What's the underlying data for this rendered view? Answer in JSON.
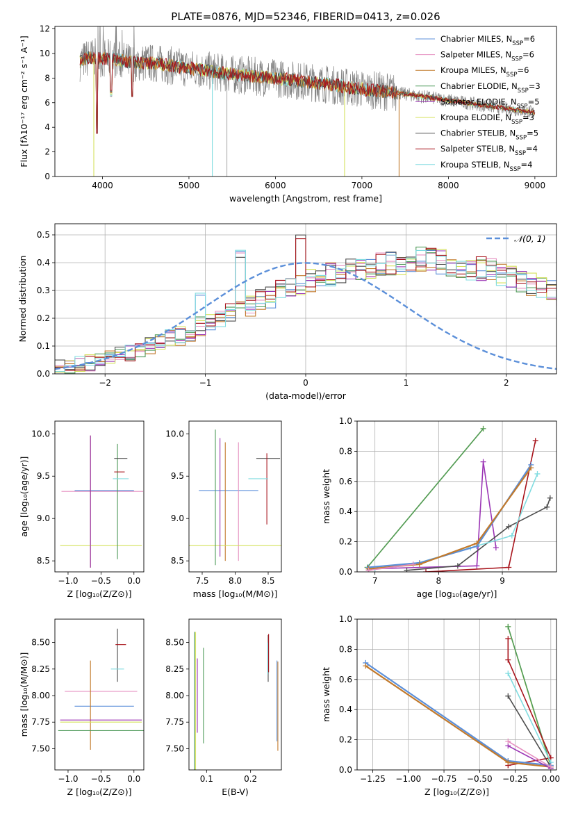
{
  "figure": {
    "title": "PLATE=0876, MJD=52346, FIBERID=0413, z=0.026"
  },
  "series_meta": [
    {
      "name": "Chabrier MILES",
      "nssp": "6",
      "color": "#5b8fd9"
    },
    {
      "name": "Salpeter MILES",
      "nssp": "6",
      "color": "#e58fc0"
    },
    {
      "name": "Kroupa MILES",
      "nssp": "6",
      "color": "#c27a2c"
    },
    {
      "name": "Chabrier ELODIE",
      "nssp": "3",
      "color": "#4f9a5a"
    },
    {
      "name": "Salpeter ELODIE",
      "nssp": "5",
      "color": "#9b35b5"
    },
    {
      "name": "Kroupa ELODIE",
      "nssp": "3",
      "color": "#d4e05a"
    },
    {
      "name": "Chabrier STELIB",
      "nssp": "5",
      "color": "#4d4d4d"
    },
    {
      "name": "Salpeter STELIB",
      "nssp": "4",
      "color": "#a8141c"
    },
    {
      "name": "Kroupa STELIB",
      "nssp": "4",
      "color": "#80dce0"
    }
  ],
  "chart_data": [
    {
      "id": "spectrum",
      "type": "line",
      "title": "PLATE=0876, MJD=52346, FIBERID=0413, z=0.026",
      "xlabel": "wavelength [Angstrom, rest frame]",
      "ylabel": "Flux [fλ10⁻¹⁷ erg cm⁻² s⁻¹ A⁻¹]",
      "xlim": [
        3450,
        9250
      ],
      "ylim": [
        0,
        12.2
      ],
      "xticks": [
        "4000",
        "5000",
        "6000",
        "7000",
        "8000",
        "9000"
      ],
      "yticks": [
        "0",
        "2",
        "4",
        "6",
        "8",
        "10",
        "12"
      ],
      "grid": false,
      "legend": "top-right",
      "continuum": {
        "x": [
          3740,
          3850,
          3950,
          4100,
          4300,
          4600,
          5000,
          5500,
          6000,
          6500,
          7000,
          7300,
          7600,
          7900,
          8200,
          8600,
          9000
        ],
        "y": [
          9.3,
          9.7,
          9.6,
          9.6,
          9.3,
          9.2,
          8.8,
          8.3,
          8.0,
          7.6,
          7.1,
          6.9,
          6.6,
          6.3,
          6.0,
          5.6,
          5.2
        ]
      },
      "dips": [
        {
          "series": "Kroupa ELODIE",
          "x": 3900,
          "y": 0
        },
        {
          "series": "Kroupa STELIB",
          "x": 5270,
          "y": 0
        },
        {
          "series": "Kroupa ELODIE",
          "x": 6800,
          "y": 0
        },
        {
          "series": "Kroupa MILES",
          "x": 7430,
          "y": 0
        }
      ]
    },
    {
      "id": "residuals",
      "type": "histogram",
      "xlabel": "(data-model)/error",
      "ylabel": "Normed distribution",
      "xlim": [
        -2.5,
        2.5
      ],
      "ylim": [
        0,
        0.54
      ],
      "xticks": [
        "−2",
        "−1",
        "0",
        "1",
        "2"
      ],
      "yticks": [
        "0.0",
        "0.1",
        "0.2",
        "0.3",
        "0.4",
        "0.5"
      ],
      "grid": true,
      "legend": "top-right",
      "reference_label": "𝒩(0, 1)",
      "bin_width": 0.1,
      "bin_start": -2.5,
      "base_values": [
        0.022,
        0.028,
        0.035,
        0.042,
        0.05,
        0.058,
        0.066,
        0.075,
        0.086,
        0.098,
        0.11,
        0.124,
        0.138,
        0.152,
        0.168,
        0.184,
        0.2,
        0.216,
        0.232,
        0.248,
        0.263,
        0.279,
        0.294,
        0.309,
        0.322,
        0.335,
        0.347,
        0.358,
        0.368,
        0.376,
        0.383,
        0.389,
        0.393,
        0.397,
        0.4,
        0.402,
        0.41,
        0.41,
        0.4,
        0.395,
        0.39,
        0.384,
        0.377,
        0.368,
        0.358,
        0.347,
        0.335,
        0.322,
        0.309,
        0.294,
        0.279,
        0.263,
        0.248,
        0.232,
        0.216,
        0.2,
        0.184,
        0.168,
        0.152,
        0.138,
        0.124,
        0.11,
        0.098,
        0.086,
        0.075,
        0.066,
        0.058,
        0.05,
        0.042,
        0.035,
        0.028,
        0.022,
        0.018,
        0.014,
        0.012,
        0.01
      ],
      "peaks": [
        {
          "x": -1.05,
          "y": 0.3
        },
        {
          "x": -0.6,
          "y": 0.445
        },
        {
          "x": -0.05,
          "y": 0.51
        },
        {
          "x": 0.1,
          "y": 0.43
        },
        {
          "x": 0.45,
          "y": 0.4
        }
      ]
    },
    {
      "id": "age_vs_Z",
      "type": "errorbar",
      "xlabel": "Z [log₁₀(Z/Z⊙)]",
      "ylabel": "age  [log₁₀(age/yr)]",
      "xlim": [
        -1.2,
        0.15
      ],
      "ylim": [
        8.37,
        10.15
      ],
      "xticks": [
        "−1.0",
        "−0.5",
        "0.0"
      ],
      "yticks": [
        "8.5",
        "9.0",
        "9.5",
        "10.0"
      ],
      "grid": false,
      "points": [
        {
          "series": "Chabrier MILES",
          "x": -0.45,
          "xerr": 0.45,
          "y": 9.33,
          "yerr": 0.0
        },
        {
          "series": "Salpeter MILES",
          "x": -0.48,
          "xerr": 0.62,
          "y": 9.32,
          "yerr": 0.0
        },
        {
          "series": "Kroupa MILES",
          "x": -0.66,
          "xerr": 0.0,
          "y": 9.2,
          "yerr": 0.78
        },
        {
          "series": "Kroupa ELODIE",
          "x": -0.5,
          "xerr": 0.62,
          "y": 8.68,
          "yerr": 0.0
        },
        {
          "series": "Chabrier ELODIE",
          "x": -0.25,
          "xerr": 0.0,
          "y": 9.2,
          "yerr": 0.68
        },
        {
          "series": "Salpeter ELODIE",
          "x": -0.66,
          "xerr": 0.0,
          "y": 9.2,
          "yerr": 0.78
        },
        {
          "series": "Chabrier STELIB",
          "x": -0.2,
          "xerr": 0.1,
          "y": 9.71,
          "yerr": 0.0
        },
        {
          "series": "Salpeter STELIB",
          "x": -0.22,
          "xerr": 0.08,
          "y": 9.55,
          "yerr": 0.0
        },
        {
          "series": "Kroupa STELIB",
          "x": -0.2,
          "xerr": 0.12,
          "y": 9.47,
          "yerr": 0.0
        }
      ]
    },
    {
      "id": "age_vs_mass",
      "type": "errorbar",
      "xlabel": "mass [log₁₀(M/M⊙)]",
      "ylabel": "",
      "xlim": [
        7.3,
        8.7
      ],
      "ylim": [
        8.37,
        10.15
      ],
      "xticks": [
        "7.5",
        "8.0",
        "8.5"
      ],
      "yticks": [
        "8.5",
        "9.0",
        "9.5",
        "10.0"
      ],
      "grid": false,
      "points": [
        {
          "series": "Chabrier MILES",
          "x": 7.9,
          "xerr": 0.45,
          "y": 9.33,
          "yerr": 0.0
        },
        {
          "series": "Salpeter MILES",
          "x": 8.05,
          "xerr": 0.0,
          "y": 9.2,
          "yerr": 0.7
        },
        {
          "series": "Kroupa MILES",
          "x": 7.85,
          "xerr": 0.0,
          "y": 9.2,
          "yerr": 0.7
        },
        {
          "series": "Kroupa ELODIE",
          "x": 8.0,
          "xerr": 0.7,
          "y": 8.68,
          "yerr": 0.0
        },
        {
          "series": "Chabrier ELODIE",
          "x": 7.7,
          "xerr": 0.0,
          "y": 9.25,
          "yerr": 0.8
        },
        {
          "series": "Salpeter ELODIE",
          "x": 7.77,
          "xerr": 0.0,
          "y": 9.25,
          "yerr": 0.7
        },
        {
          "series": "Chabrier STELIB",
          "x": 8.5,
          "xerr": 0.18,
          "y": 9.71,
          "yerr": 0.0
        },
        {
          "series": "Salpeter STELIB",
          "x": 8.48,
          "xerr": 0.0,
          "y": 9.35,
          "yerr": 0.42
        },
        {
          "series": "Kroupa STELIB",
          "x": 8.35,
          "xerr": 0.15,
          "y": 9.47,
          "yerr": 0.0
        }
      ]
    },
    {
      "id": "weight_vs_age",
      "type": "line",
      "xlabel": "age  [log₁₀(age/yr)]",
      "ylabel": "mass weight",
      "xlim": [
        6.72,
        9.85
      ],
      "ylim": [
        0,
        1.0
      ],
      "xticks": [
        "7",
        "8",
        "9"
      ],
      "yticks": [
        "0.0",
        "0.2",
        "0.4",
        "0.6",
        "0.8",
        "1.0"
      ],
      "grid": true,
      "series": [
        {
          "name": "Kroupa ELODIE",
          "x": [
            6.88,
            8.7
          ],
          "y": [
            0.03,
            0.95
          ]
        },
        {
          "name": "Chabrier ELODIE",
          "x": [
            6.88,
            8.7
          ],
          "y": [
            0.03,
            0.95
          ]
        },
        {
          "name": "Salpeter ELODIE",
          "x": [
            6.9,
            8.6,
            8.7,
            8.9
          ],
          "y": [
            0.02,
            0.04,
            0.73,
            0.16
          ]
        },
        {
          "name": "Chabrier STELIB",
          "x": [
            7.5,
            8.3,
            9.1,
            9.7,
            9.75
          ],
          "y": [
            0.01,
            0.04,
            0.3,
            0.43,
            0.49
          ]
        },
        {
          "name": "Salpeter STELIB",
          "x": [
            7.8,
            9.1,
            9.52
          ],
          "y": [
            0.0,
            0.03,
            0.87
          ]
        },
        {
          "name": "Kroupa STELIB",
          "x": [
            7.0,
            7.6,
            8.5,
            9.15,
            9.55
          ],
          "y": [
            0.02,
            0.05,
            0.16,
            0.24,
            0.65
          ]
        },
        {
          "name": "Chabrier MILES",
          "x": [
            6.9,
            7.7,
            8.6,
            9.45
          ],
          "y": [
            0.03,
            0.06,
            0.17,
            0.71
          ]
        },
        {
          "name": "Kroupa MILES",
          "x": [
            6.9,
            7.7,
            8.6,
            9.45
          ],
          "y": [
            0.02,
            0.05,
            0.19,
            0.69
          ]
        },
        {
          "name": "Salpeter MILES",
          "x": [
            6.9,
            7.6
          ],
          "y": [
            0.01,
            0.05
          ]
        }
      ]
    },
    {
      "id": "mass_vs_Z",
      "type": "errorbar",
      "xlabel": "Z [log₁₀(Z/Z⊙)]",
      "ylabel": "mass [log₁₀(M/M⊙)]",
      "xlim": [
        -1.2,
        0.15
      ],
      "ylim": [
        7.3,
        8.72
      ],
      "xticks": [
        "−1.0",
        "−0.5",
        "0.0"
      ],
      "yticks": [
        "7.50",
        "7.75",
        "8.00",
        "8.25",
        "8.50"
      ],
      "grid": false,
      "points": [
        {
          "series": "Salpeter MILES",
          "x": -0.5,
          "xerr": 0.55,
          "y": 8.04,
          "yerr": 0.0
        },
        {
          "series": "Chabrier MILES",
          "x": -0.45,
          "xerr": 0.45,
          "y": 7.9,
          "yerr": 0.0
        },
        {
          "series": "Kroupa MILES",
          "x": -0.66,
          "xerr": 0.0,
          "y": 7.91,
          "yerr": 0.42
        },
        {
          "series": "Salpeter ELODIE",
          "x": -0.5,
          "xerr": 0.62,
          "y": 7.77,
          "yerr": 0.0
        },
        {
          "series": "Kroupa ELODIE",
          "x": -0.5,
          "xerr": 0.62,
          "y": 7.75,
          "yerr": 0.0
        },
        {
          "series": "Chabrier ELODIE",
          "x": -0.45,
          "xerr": 0.7,
          "y": 7.67,
          "yerr": 0.0
        },
        {
          "series": "Chabrier STELIB",
          "x": -0.25,
          "xerr": 0.0,
          "y": 8.38,
          "yerr": 0.25
        },
        {
          "series": "Salpeter STELIB",
          "x": -0.2,
          "xerr": 0.08,
          "y": 8.48,
          "yerr": 0.0
        },
        {
          "series": "Kroupa STELIB",
          "x": -0.25,
          "xerr": 0.1,
          "y": 8.25,
          "yerr": 0.0
        }
      ]
    },
    {
      "id": "mass_vs_ebv",
      "type": "errorbar",
      "xlabel": "E(B-V)",
      "ylabel": "",
      "xlim": [
        0.06,
        0.27
      ],
      "ylim": [
        7.3,
        8.72
      ],
      "xticks": [
        "0.1",
        "0.2"
      ],
      "yticks": [
        "7.50",
        "7.75",
        "8.00",
        "8.25",
        "8.50"
      ],
      "grid": false,
      "points": [
        {
          "series": "Kroupa ELODIE",
          "x": 0.075,
          "xerr": 0.0,
          "y": 7.95,
          "yerr": 0.65
        },
        {
          "series": "Chabrier ELODIE",
          "x": 0.072,
          "xerr": 0.0,
          "y": 7.95,
          "yerr": 0.65
        },
        {
          "series": "Salpeter ELODIE",
          "x": 0.079,
          "xerr": 0.0,
          "y": 8.0,
          "yerr": 0.35
        },
        {
          "series": "Chabrier ELODIE",
          "x": 0.093,
          "xerr": 0.0,
          "y": 8.0,
          "yerr": 0.45
        },
        {
          "series": "Chabrier STELIB",
          "x": 0.24,
          "xerr": 0.0,
          "y": 8.35,
          "yerr": 0.22
        },
        {
          "series": "Salpeter STELIB",
          "x": 0.241,
          "xerr": 0.0,
          "y": 8.4,
          "yerr": 0.18
        },
        {
          "series": "Kroupa STELIB",
          "x": 0.239,
          "xerr": 0.0,
          "y": 8.35,
          "yerr": 0.15
        },
        {
          "series": "Kroupa MILES",
          "x": 0.262,
          "xerr": 0.0,
          "y": 7.9,
          "yerr": 0.42
        },
        {
          "series": "Chabrier MILES",
          "x": 0.26,
          "xerr": 0.0,
          "y": 7.95,
          "yerr": 0.38
        }
      ]
    },
    {
      "id": "weight_vs_Z",
      "type": "line",
      "xlabel": "Z [log₁₀(Z/Z⊙)]",
      "ylabel": "mass weight",
      "xlim": [
        -1.36,
        0.04
      ],
      "ylim": [
        0,
        1.0
      ],
      "xticks": [
        "−1.25",
        "−1.00",
        "−0.75",
        "−0.50",
        "−0.25",
        "0.00"
      ],
      "yticks": [
        "0.0",
        "0.2",
        "0.4",
        "0.6",
        "0.8",
        "1.0"
      ],
      "grid": true,
      "series": [
        {
          "name": "Kroupa ELODIE",
          "x": [
            -0.3,
            0.0
          ],
          "y": [
            0.95,
            0.02
          ]
        },
        {
          "name": "Chabrier ELODIE",
          "x": [
            -0.3,
            0.0
          ],
          "y": [
            0.95,
            0.03
          ]
        },
        {
          "name": "Salpeter STELIB",
          "x": [
            -0.3,
            -0.3,
            0.0,
            -0.3
          ],
          "y": [
            0.87,
            0.73,
            0.08,
            0.03
          ]
        },
        {
          "name": "Kroupa STELIB",
          "x": [
            -0.3,
            0.0
          ],
          "y": [
            0.64,
            0.05
          ]
        },
        {
          "name": "Chabrier STELIB",
          "x": [
            -0.3,
            0.0
          ],
          "y": [
            0.49,
            0.02
          ]
        },
        {
          "name": "Chabrier MILES",
          "x": [
            -1.3,
            -0.3,
            0.0
          ],
          "y": [
            0.71,
            0.06,
            0.03
          ]
        },
        {
          "name": "Kroupa MILES",
          "x": [
            -1.3,
            -0.3,
            0.0
          ],
          "y": [
            0.69,
            0.05,
            0.02
          ]
        },
        {
          "name": "Salpeter ELODIE",
          "x": [
            -0.3,
            0.0
          ],
          "y": [
            0.16,
            0.01
          ]
        },
        {
          "name": "Salpeter MILES",
          "x": [
            -0.3,
            0.0
          ],
          "y": [
            0.19,
            0.02
          ]
        }
      ]
    }
  ]
}
